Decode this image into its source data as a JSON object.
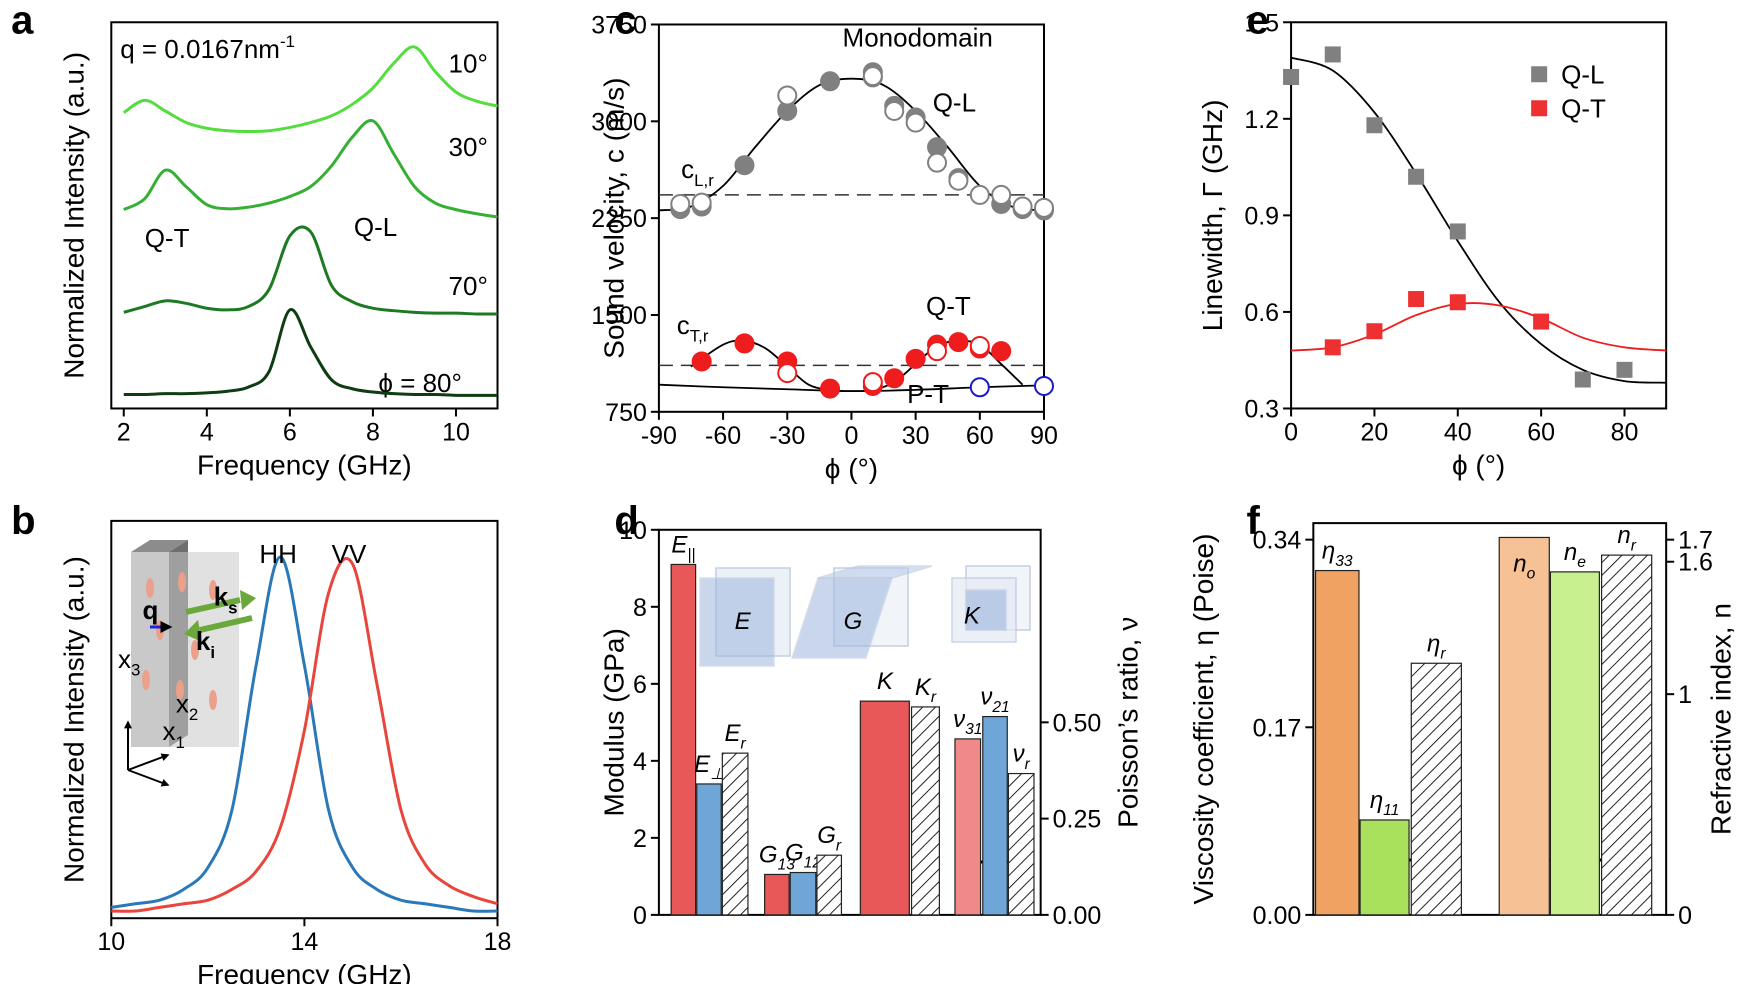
{
  "chart_data": [
    {
      "panel": "a",
      "type": "line",
      "xlabel": "Frequency (GHz)",
      "ylabel": "Normalized Intensity (a.u.)",
      "xlim": [
        1.7,
        11
      ],
      "xticks": [
        2,
        4,
        6,
        8,
        10
      ],
      "ylim": [
        0,
        4.7
      ],
      "annotations": [
        {
          "text": "q = 0.0167nm",
          "sup": "-1"
        },
        {
          "text": "10°"
        },
        {
          "text": "30°"
        },
        {
          "text": "70°"
        },
        {
          "text": "ϕ = 80°"
        },
        {
          "text": "Q-T"
        },
        {
          "text": "Q-L"
        }
      ],
      "x": [
        2,
        2.5,
        3,
        3.5,
        4,
        4.5,
        5,
        5.5,
        6,
        6.5,
        7,
        7.5,
        8,
        8.5,
        9,
        9.5,
        10,
        10.5,
        11
      ],
      "series": [
        {
          "color": "#55dd3f",
          "values": [
            3.6,
            3.75,
            3.62,
            3.48,
            3.41,
            3.38,
            3.37,
            3.38,
            3.42,
            3.48,
            3.56,
            3.7,
            3.9,
            4.2,
            4.4,
            4.1,
            3.85,
            3.74,
            3.68
          ]
        },
        {
          "color": "#35b034",
          "values": [
            2.42,
            2.55,
            2.9,
            2.7,
            2.48,
            2.43,
            2.45,
            2.5,
            2.58,
            2.7,
            2.95,
            3.3,
            3.5,
            3.1,
            2.7,
            2.5,
            2.42,
            2.37,
            2.33
          ]
        },
        {
          "color": "#1d7a22",
          "values": [
            1.17,
            1.24,
            1.31,
            1.28,
            1.22,
            1.2,
            1.24,
            1.45,
            2.1,
            2.15,
            1.5,
            1.3,
            1.22,
            1.19,
            1.17,
            1.16,
            1.16,
            1.15,
            1.15
          ]
        },
        {
          "color": "#0f3d12",
          "values": [
            0.17,
            0.17,
            0.18,
            0.18,
            0.19,
            0.21,
            0.26,
            0.45,
            1.2,
            0.75,
            0.35,
            0.24,
            0.2,
            0.18,
            0.17,
            0.17,
            0.16,
            0.16,
            0.16
          ]
        }
      ]
    },
    {
      "panel": "b",
      "type": "line",
      "xlabel": "Frequency (GHz)",
      "ylabel": "Normalized Intensity (a.u.)",
      "xlim": [
        10,
        18
      ],
      "xticks": [
        10,
        14,
        18
      ],
      "ylim": [
        0,
        1.1
      ],
      "annotations": [
        {
          "text": "q"
        },
        {
          "text": "k",
          "sub": "s"
        },
        {
          "text": "k",
          "sub": "i"
        },
        {
          "text": "x",
          "sub": "3"
        },
        {
          "text": "x",
          "sub": "2"
        },
        {
          "text": "x",
          "sub": "1"
        }
      ],
      "x": [
        10,
        10.5,
        11,
        11.5,
        12,
        12.5,
        13,
        13.5,
        14,
        14.5,
        15,
        15.5,
        16,
        16.5,
        17,
        17.5,
        18
      ],
      "series": [
        {
          "name": "HH",
          "color": "#2b78b8",
          "values": [
            0.03,
            0.04,
            0.05,
            0.08,
            0.14,
            0.3,
            0.7,
            1.0,
            0.7,
            0.3,
            0.14,
            0.08,
            0.05,
            0.04,
            0.03,
            0.02,
            0.02
          ]
        },
        {
          "name": "VV",
          "color": "#e8453c",
          "values": [
            0.02,
            0.02,
            0.03,
            0.04,
            0.05,
            0.08,
            0.13,
            0.25,
            0.52,
            0.9,
            0.98,
            0.65,
            0.3,
            0.15,
            0.09,
            0.06,
            0.04
          ]
        }
      ]
    },
    {
      "panel": "c",
      "type": "scatter",
      "xlabel": "ϕ (°)",
      "ylabel": "Sound velocity, c (m/s)",
      "xlim": [
        -90,
        90
      ],
      "xticks": [
        -90,
        -60,
        -30,
        0,
        30,
        60,
        90
      ],
      "ylim": [
        750,
        3750
      ],
      "yticks": [
        750,
        1500,
        2250,
        3000,
        3750
      ],
      "annotations": [
        {
          "text": "Monodomain"
        },
        {
          "text": "Q-L"
        },
        {
          "text": "Q-T"
        },
        {
          "text": "P-T"
        },
        {
          "text": "c",
          "sub": "L,r"
        },
        {
          "text": "c",
          "sub": "T,r"
        }
      ],
      "hlines": [
        2430,
        1110
      ],
      "series": [
        {
          "marker": "filled",
          "color": "#808080",
          "x": [
            -80,
            -70,
            -50,
            -30,
            -10,
            10,
            10,
            20,
            30,
            40,
            50,
            70,
            80,
            90
          ],
          "values": [
            2320,
            2340,
            2660,
            3080,
            3310,
            3340,
            3380,
            3120,
            3030,
            2800,
            2560,
            2360,
            2320,
            2310
          ]
        },
        {
          "marker": "open",
          "color": "#808080",
          "x": [
            -80,
            -70,
            -30,
            10,
            20,
            30,
            40,
            50,
            60,
            70,
            80,
            90
          ],
          "values": [
            2360,
            2370,
            3200,
            3350,
            3080,
            2990,
            2680,
            2540,
            2430,
            2430,
            2340,
            2330
          ]
        },
        {
          "marker": "filled",
          "color": "#ee1c1c",
          "x": [
            -70,
            -50,
            -30,
            -10,
            10,
            20,
            30,
            40,
            50,
            60,
            70
          ],
          "values": [
            1140,
            1280,
            1140,
            930,
            950,
            1010,
            1160,
            1270,
            1290,
            1240,
            1220
          ]
        },
        {
          "marker": "open",
          "color": "#ee1c1c",
          "x": [
            -30,
            10,
            40,
            60
          ],
          "values": [
            1050,
            980,
            1220,
            1260
          ]
        },
        {
          "marker": "open",
          "color": "#1a1ad0",
          "x": [
            60,
            90
          ],
          "values": [
            940,
            950
          ]
        }
      ],
      "fits": [
        {
          "color": "#000000",
          "x": [
            -90,
            -75,
            -60,
            -45,
            -30,
            -15,
            0,
            15,
            30,
            45,
            60,
            75,
            90
          ],
          "values": [
            2310,
            2340,
            2500,
            2800,
            3080,
            3280,
            3330,
            3280,
            3080,
            2800,
            2500,
            2340,
            2310
          ]
        },
        {
          "color": "#000000",
          "x": [
            -75,
            -60,
            -50,
            -40,
            -30,
            -20,
            -10,
            0,
            10,
            20,
            30,
            40,
            50,
            60,
            70,
            80
          ],
          "values": [
            1100,
            1270,
            1300,
            1240,
            1100,
            960,
            920,
            910,
            920,
            980,
            1120,
            1260,
            1300,
            1270,
            1120,
            960
          ]
        },
        {
          "color": "#000000",
          "x": [
            -90,
            -60,
            -30,
            0,
            30,
            60,
            90
          ],
          "values": [
            960,
            940,
            925,
            910,
            920,
            940,
            955
          ]
        }
      ]
    },
    {
      "panel": "d",
      "type": "bar",
      "ylabel": "Modulus (GPa)",
      "y2label": "Poisson’s ratio, ν",
      "ylim": [
        0,
        10
      ],
      "yticks": [
        0,
        2,
        4,
        6,
        8,
        10
      ],
      "y2lim": [
        0,
        1
      ],
      "y2ticks": [
        {
          "value": 0,
          "label": "0.00"
        },
        {
          "value": 0.25,
          "label": "0.25"
        },
        {
          "value": 0.5,
          "label": "0.50"
        }
      ],
      "annotations": [
        {
          "text": "E"
        },
        {
          "text": "G"
        },
        {
          "text": "K"
        }
      ],
      "bars": [
        {
          "text": "E",
          "sub": "||",
          "value": 9.1,
          "color": "#e85858"
        },
        {
          "text": "E",
          "sub": "⊥",
          "value": 3.4,
          "color": "#6fa6d8"
        },
        {
          "text": "E",
          "sub": "r",
          "value": 4.2,
          "color": "hatch"
        },
        {
          "text": "G",
          "sub": "13",
          "value": 1.05,
          "color": "#e85858"
        },
        {
          "text": "G",
          "sub": "12",
          "value": 1.1,
          "color": "#6fa6d8"
        },
        {
          "text": "G",
          "sub": "r",
          "value": 1.55,
          "color": "hatch"
        },
        {
          "text": "K",
          "value": 5.55,
          "color": "#e85858"
        },
        {
          "text": "K",
          "sub": "r",
          "value": 5.4,
          "color": "hatch"
        },
        {
          "text": "ν",
          "sub": "31",
          "value": 0.457,
          "color": "#f08a8a",
          "axis": "y2"
        },
        {
          "text": "ν",
          "sub": "21",
          "value": 0.515,
          "color": "#6fa6d8",
          "axis": "y2"
        },
        {
          "text": "ν",
          "sub": "r",
          "value": 0.367,
          "color": "hatch",
          "axis": "y2"
        }
      ]
    },
    {
      "panel": "e",
      "type": "scatter",
      "xlabel": "ϕ (°)",
      "ylabel": "Linewidth, Γ (GHz)",
      "xlim": [
        0,
        90
      ],
      "xticks": [
        0,
        20,
        40,
        60,
        80
      ],
      "ylim": [
        0.3,
        1.5
      ],
      "yticks": [
        0.3,
        0.6,
        0.9,
        1.2,
        1.5
      ],
      "legend": "upper right",
      "series": [
        {
          "name": "Q-L",
          "marker": "square",
          "color": "#808080",
          "x": [
            0,
            10,
            20,
            30,
            40,
            70,
            80
          ],
          "values": [
            1.33,
            1.4,
            1.18,
            1.02,
            0.85,
            0.39,
            0.42
          ]
        },
        {
          "name": "Q-T",
          "marker": "square",
          "color": "#ee3030",
          "x": [
            10,
            20,
            30,
            40,
            60
          ],
          "values": [
            0.49,
            0.54,
            0.64,
            0.63,
            0.57
          ]
        }
      ],
      "fits": [
        {
          "color": "#000000",
          "x": [
            0,
            10,
            20,
            30,
            40,
            50,
            60,
            70,
            80,
            90
          ],
          "values": [
            1.39,
            1.35,
            1.22,
            1.03,
            0.82,
            0.63,
            0.5,
            0.42,
            0.385,
            0.38
          ]
        },
        {
          "color": "#ee1c1c",
          "x": [
            0,
            10,
            20,
            30,
            40,
            50,
            60,
            70,
            80,
            90
          ],
          "values": [
            0.48,
            0.49,
            0.53,
            0.59,
            0.625,
            0.62,
            0.58,
            0.52,
            0.49,
            0.48
          ]
        }
      ]
    },
    {
      "panel": "f",
      "type": "bar",
      "ylabel": "Viscosity coefficient, η (Poise)",
      "y2label": "Refractive index, n",
      "ylim": [
        0,
        0.355
      ],
      "yticks": [
        {
          "value": 0,
          "label": "0.00"
        },
        0.17,
        0.34
      ],
      "y2lim": [
        0,
        1.775
      ],
      "y2ticks": [
        0,
        1,
        1.6,
        1.7
      ],
      "bars": [
        {
          "text": "η",
          "sub": "33",
          "value": 0.312,
          "color": "#f0a262"
        },
        {
          "text": "η",
          "sub": "11",
          "value": 0.086,
          "color": "#a9e05c"
        },
        {
          "text": "η",
          "sub": "r",
          "value": 0.228,
          "color": "hatch"
        },
        {
          "text": "n",
          "sub": "o",
          "value": 1.71,
          "color": "#f6c295",
          "axis": "y2"
        },
        {
          "text": "n",
          "sub": "e",
          "value": 1.554,
          "color": "#c9f08e",
          "axis": "y2"
        },
        {
          "text": "n",
          "sub": "r",
          "value": 1.63,
          "color": "hatch",
          "axis": "y2"
        }
      ]
    }
  ]
}
